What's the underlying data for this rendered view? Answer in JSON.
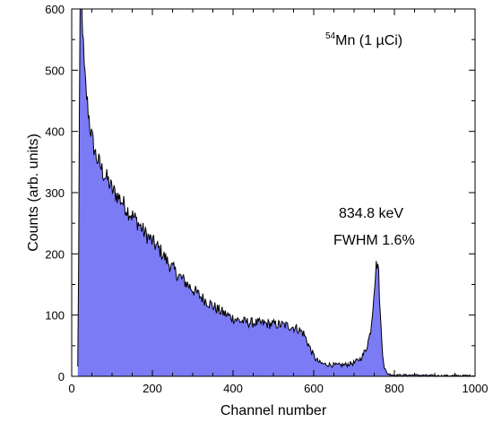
{
  "chart_data": {
    "type": "area",
    "xlabel": "Channel number",
    "ylabel": "Counts (arb. units)",
    "xlim": [
      0,
      1000
    ],
    "ylim": [
      0,
      600
    ],
    "xticks": [
      0,
      200,
      400,
      600,
      800,
      1000
    ],
    "yticks": [
      0,
      100,
      200,
      300,
      400,
      500,
      600
    ],
    "grid": false,
    "fill_color": "#7b7bf5",
    "line_color": "#000000",
    "annotations": {
      "source_sup": "54",
      "source_main": "Mn (1 µCi)",
      "peak_energy": "834.8 keV",
      "fwhm": "FWHM 1.6%"
    },
    "series": [
      {
        "x": [
          15,
          18,
          20,
          22,
          25,
          28,
          30,
          35,
          40,
          45,
          50,
          60,
          70,
          80,
          90,
          100,
          120,
          140,
          160,
          180,
          200,
          220,
          240,
          260,
          280,
          300,
          320,
          340,
          360,
          380,
          400,
          420,
          440,
          460,
          480,
          500,
          520,
          540,
          560,
          575,
          585,
          595,
          605,
          615,
          625,
          640,
          660,
          680,
          700,
          710,
          720,
          730,
          740,
          745,
          750,
          755,
          758,
          760,
          762,
          765,
          770,
          775,
          780,
          785,
          790,
          800,
          850,
          900,
          950,
          1000
        ],
        "values": [
          15,
          250,
          600,
          600,
          600,
          560,
          510,
          470,
          440,
          410,
          390,
          360,
          345,
          330,
          320,
          305,
          290,
          270,
          255,
          235,
          220,
          205,
          185,
          168,
          155,
          142,
          130,
          120,
          110,
          102,
          95,
          90,
          88,
          87,
          86,
          85,
          84,
          82,
          78,
          70,
          55,
          40,
          28,
          22,
          20,
          19,
          18,
          19,
          22,
          26,
          32,
          45,
          70,
          100,
          145,
          180,
          188,
          180,
          150,
          100,
          45,
          15,
          6,
          4,
          3,
          2,
          2,
          1,
          1,
          1
        ]
      }
    ]
  }
}
